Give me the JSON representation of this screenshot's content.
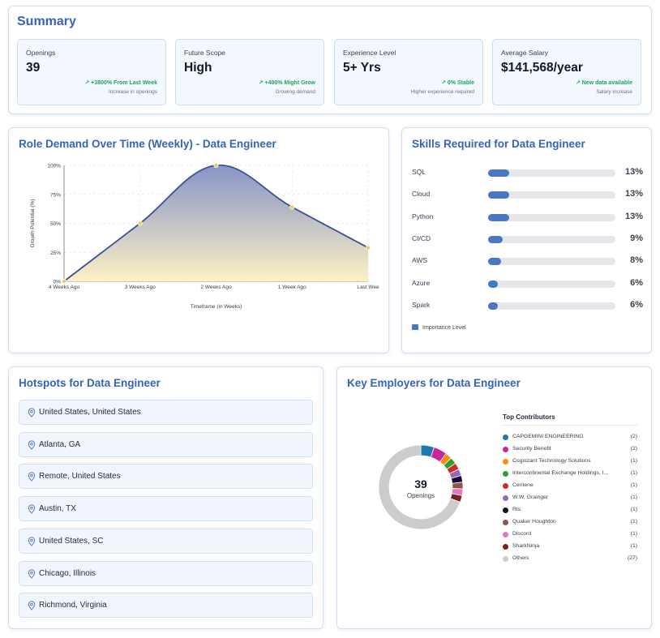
{
  "summary": {
    "title": "Summary",
    "stats": [
      {
        "label": "Openings",
        "value": "39",
        "change": "↗ +3800% From Last Week",
        "sub": "Increase in openings"
      },
      {
        "label": "Future Scope",
        "value": "High",
        "change": "↗ +400% Might Grow",
        "sub": "Growing demand"
      },
      {
        "label": "Experience Level",
        "value": "5+ Yrs",
        "change": "↗ 0% Stable",
        "sub": "Higher experience required"
      },
      {
        "label": "Average Salary",
        "value": "$141,568/year",
        "change": "↗ New data available",
        "sub": "Salary increase"
      }
    ]
  },
  "demand": {
    "title": "Role Demand Over Time (Weekly) - Data Engineer"
  },
  "chart_data": {
    "type": "area",
    "title": "Role Demand Over Time (Weekly) - Data Engineer",
    "xlabel": "Timeframe (in Weeks)",
    "ylabel": "Growth Potential (%)",
    "categories": [
      "4 Weeks Ago",
      "3 Weeks Ago",
      "2 Weeks Ago",
      "1 Week Ago",
      "Last Week"
    ],
    "x_tick_labels": [
      "4 Weeks Ago",
      "3 Weeks Ago",
      "2 Weeks Ago",
      "1 Week Ago",
      "Last Wee"
    ],
    "values": [
      0,
      50,
      100,
      64,
      29
    ],
    "y_ticks": [
      "0%",
      "25%",
      "50%",
      "75%",
      "100%"
    ],
    "ylim": [
      0,
      100
    ],
    "grid": true,
    "colors": {
      "line": "#3c4f9a",
      "fill_top": "#7f8fc4",
      "fill_bottom": "#fdf0c2",
      "point": "#f2c94c"
    }
  },
  "skills": {
    "title": "Skills Required for Data Engineer",
    "legend": "Importance Level",
    "items": [
      {
        "name": "SQL",
        "value": 13,
        "label": "13%"
      },
      {
        "name": "Cloud",
        "value": 13,
        "label": "13%"
      },
      {
        "name": "Python",
        "value": 13,
        "label": "13%"
      },
      {
        "name": "CI/CD",
        "value": 9,
        "label": "9%"
      },
      {
        "name": "AWS",
        "value": 8,
        "label": "8%"
      },
      {
        "name": "Azure",
        "value": 6,
        "label": "6%"
      },
      {
        "name": "Spark",
        "value": 6,
        "label": "6%"
      }
    ]
  },
  "hotspots": {
    "title": "Hotspots for Data Engineer",
    "items": [
      "United States, United States",
      "Atlanta, GA",
      "Remote, United States",
      "Austin, TX",
      "United States, SC",
      "Chicago, Illinois",
      "Richmond, Virginia"
    ]
  },
  "employers": {
    "title": "Key Employers for Data Engineer",
    "center_value": "39",
    "center_label": "Openings",
    "list_title": "Top Contributors",
    "items": [
      {
        "name": "CAPGEMINI ENGINEERING",
        "count": 2,
        "label": "(2)",
        "color": "#1f77b4"
      },
      {
        "name": "Security Benefit",
        "count": 2,
        "label": "(2)",
        "color": "#c9259f"
      },
      {
        "name": "Cognizant Technology Solutions",
        "count": 1,
        "label": "(1)",
        "color": "#ff8a10"
      },
      {
        "name": "Intercontinental Exchange Holdings, I...",
        "count": 1,
        "label": "(1)",
        "color": "#2ca02c"
      },
      {
        "name": "Centene",
        "count": 1,
        "label": "(1)",
        "color": "#d62728"
      },
      {
        "name": "W.W. Grainger",
        "count": 1,
        "label": "(1)",
        "color": "#9467bd"
      },
      {
        "name": "Rts",
        "count": 1,
        "label": "(1)",
        "color": "#1a0a33"
      },
      {
        "name": "Quaker Houghton",
        "count": 1,
        "label": "(1)",
        "color": "#8c564b"
      },
      {
        "name": "Discord",
        "count": 1,
        "label": "(1)",
        "color": "#e377c2"
      },
      {
        "name": "SharkNinja",
        "count": 1,
        "label": "(1)",
        "color": "#7a1f1f"
      },
      {
        "name": "Others",
        "count": 27,
        "label": "(27)",
        "color": "#cccccc"
      }
    ]
  }
}
